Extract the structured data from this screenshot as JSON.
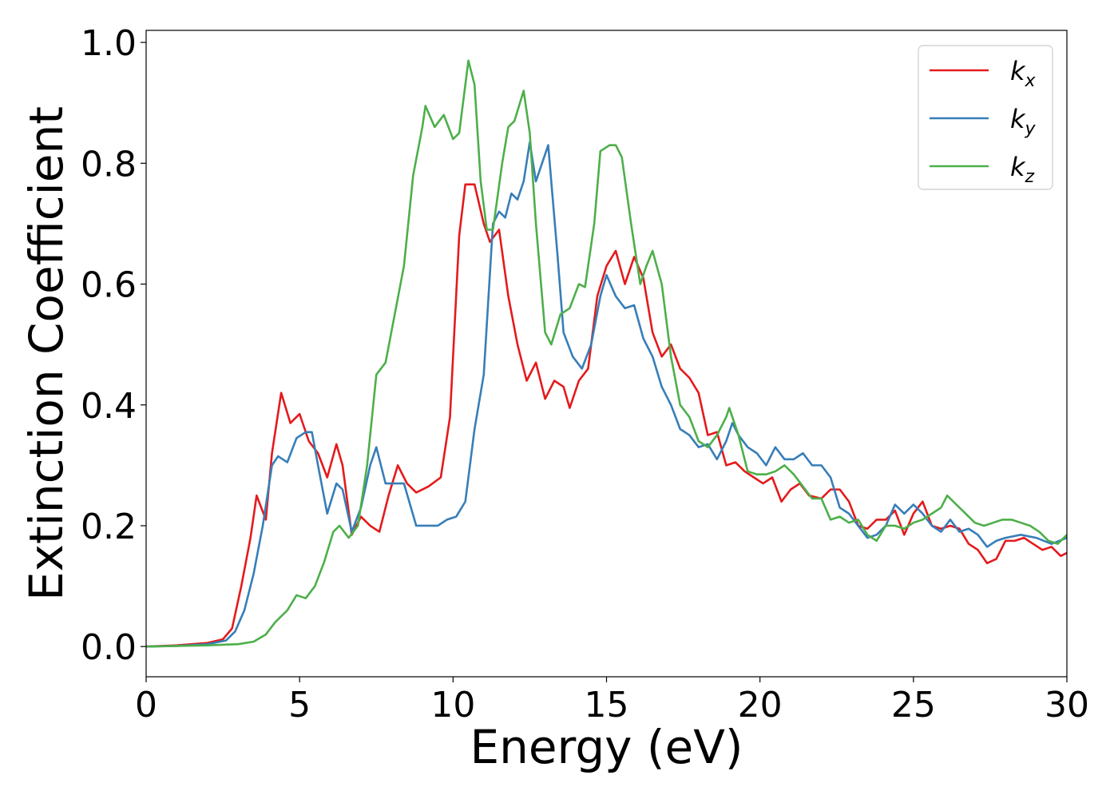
{
  "chart_data": {
    "type": "line",
    "xlabel": "Energy (eV)",
    "ylabel": "Extinction Coefficient",
    "xlim": [
      0,
      30
    ],
    "ylim": [
      -0.05,
      1.02
    ],
    "xticks": [
      0,
      5,
      10,
      15,
      20,
      25,
      30
    ],
    "xtick_labels": [
      "0",
      "5",
      "10",
      "15",
      "20",
      "25",
      "30"
    ],
    "yticks": [
      0.0,
      0.2,
      0.4,
      0.6,
      0.8,
      1.0
    ],
    "ytick_labels": [
      "0.0",
      "0.2",
      "0.4",
      "0.6",
      "0.8",
      "1.0"
    ],
    "grid": false,
    "legend_position": "top-right",
    "series": [
      {
        "name": "k_x",
        "label_base": "k",
        "label_sub": "x",
        "color": "#e41a1c",
        "points": [
          [
            0,
            0
          ],
          [
            1,
            0.002
          ],
          [
            2,
            0.006
          ],
          [
            2.5,
            0.012
          ],
          [
            2.8,
            0.03
          ],
          [
            3.1,
            0.1
          ],
          [
            3.4,
            0.18
          ],
          [
            3.6,
            0.25
          ],
          [
            3.9,
            0.21
          ],
          [
            4.1,
            0.32
          ],
          [
            4.4,
            0.42
          ],
          [
            4.7,
            0.37
          ],
          [
            5.0,
            0.385
          ],
          [
            5.3,
            0.34
          ],
          [
            5.6,
            0.32
          ],
          [
            5.9,
            0.28
          ],
          [
            6.2,
            0.335
          ],
          [
            6.4,
            0.3
          ],
          [
            6.7,
            0.185
          ],
          [
            7.0,
            0.215
          ],
          [
            7.3,
            0.2
          ],
          [
            7.6,
            0.19
          ],
          [
            7.9,
            0.25
          ],
          [
            8.2,
            0.3
          ],
          [
            8.5,
            0.27
          ],
          [
            8.8,
            0.255
          ],
          [
            9.2,
            0.265
          ],
          [
            9.6,
            0.28
          ],
          [
            9.9,
            0.38
          ],
          [
            10.2,
            0.68
          ],
          [
            10.4,
            0.765
          ],
          [
            10.7,
            0.765
          ],
          [
            11.0,
            0.7
          ],
          [
            11.2,
            0.67
          ],
          [
            11.5,
            0.69
          ],
          [
            11.8,
            0.58
          ],
          [
            12.1,
            0.5
          ],
          [
            12.4,
            0.44
          ],
          [
            12.7,
            0.47
          ],
          [
            13.0,
            0.41
          ],
          [
            13.3,
            0.44
          ],
          [
            13.6,
            0.43
          ],
          [
            13.8,
            0.395
          ],
          [
            14.1,
            0.44
          ],
          [
            14.4,
            0.46
          ],
          [
            14.7,
            0.58
          ],
          [
            15.0,
            0.63
          ],
          [
            15.3,
            0.655
          ],
          [
            15.6,
            0.6
          ],
          [
            15.9,
            0.645
          ],
          [
            16.2,
            0.61
          ],
          [
            16.5,
            0.52
          ],
          [
            16.8,
            0.48
          ],
          [
            17.1,
            0.5
          ],
          [
            17.4,
            0.46
          ],
          [
            17.7,
            0.445
          ],
          [
            18.0,
            0.42
          ],
          [
            18.3,
            0.35
          ],
          [
            18.6,
            0.355
          ],
          [
            18.9,
            0.3
          ],
          [
            19.2,
            0.305
          ],
          [
            19.5,
            0.29
          ],
          [
            19.8,
            0.28
          ],
          [
            20.1,
            0.27
          ],
          [
            20.4,
            0.28
          ],
          [
            20.7,
            0.24
          ],
          [
            21.0,
            0.26
          ],
          [
            21.3,
            0.27
          ],
          [
            21.6,
            0.25
          ],
          [
            22.0,
            0.245
          ],
          [
            22.3,
            0.26
          ],
          [
            22.6,
            0.26
          ],
          [
            22.9,
            0.24
          ],
          [
            23.2,
            0.2
          ],
          [
            23.5,
            0.195
          ],
          [
            23.8,
            0.21
          ],
          [
            24.1,
            0.21
          ],
          [
            24.4,
            0.225
          ],
          [
            24.7,
            0.185
          ],
          [
            25.0,
            0.22
          ],
          [
            25.3,
            0.24
          ],
          [
            25.6,
            0.2
          ],
          [
            25.9,
            0.195
          ],
          [
            26.2,
            0.2
          ],
          [
            26.5,
            0.195
          ],
          [
            26.8,
            0.17
          ],
          [
            27.1,
            0.16
          ],
          [
            27.4,
            0.138
          ],
          [
            27.7,
            0.145
          ],
          [
            28.0,
            0.175
          ],
          [
            28.3,
            0.175
          ],
          [
            28.6,
            0.18
          ],
          [
            28.9,
            0.17
          ],
          [
            29.2,
            0.16
          ],
          [
            29.5,
            0.165
          ],
          [
            29.8,
            0.15
          ],
          [
            30,
            0.155
          ]
        ]
      },
      {
        "name": "k_y",
        "label_base": "k",
        "label_sub": "y",
        "color": "#377eb8",
        "points": [
          [
            0,
            0
          ],
          [
            1,
            0.001
          ],
          [
            2,
            0.004
          ],
          [
            2.6,
            0.01
          ],
          [
            2.9,
            0.025
          ],
          [
            3.2,
            0.06
          ],
          [
            3.5,
            0.12
          ],
          [
            3.8,
            0.2
          ],
          [
            4.1,
            0.3
          ],
          [
            4.3,
            0.315
          ],
          [
            4.6,
            0.305
          ],
          [
            4.9,
            0.345
          ],
          [
            5.2,
            0.355
          ],
          [
            5.4,
            0.355
          ],
          [
            5.6,
            0.3
          ],
          [
            5.9,
            0.22
          ],
          [
            6.2,
            0.27
          ],
          [
            6.4,
            0.26
          ],
          [
            6.7,
            0.19
          ],
          [
            7.0,
            0.23
          ],
          [
            7.3,
            0.3
          ],
          [
            7.5,
            0.33
          ],
          [
            7.8,
            0.27
          ],
          [
            8.1,
            0.27
          ],
          [
            8.4,
            0.27
          ],
          [
            8.8,
            0.2
          ],
          [
            9.2,
            0.2
          ],
          [
            9.5,
            0.2
          ],
          [
            9.8,
            0.21
          ],
          [
            10.1,
            0.215
          ],
          [
            10.4,
            0.24
          ],
          [
            10.7,
            0.36
          ],
          [
            11.0,
            0.45
          ],
          [
            11.3,
            0.7
          ],
          [
            11.5,
            0.72
          ],
          [
            11.7,
            0.71
          ],
          [
            11.9,
            0.75
          ],
          [
            12.1,
            0.74
          ],
          [
            12.3,
            0.77
          ],
          [
            12.5,
            0.835
          ],
          [
            12.7,
            0.77
          ],
          [
            12.9,
            0.8
          ],
          [
            13.1,
            0.83
          ],
          [
            13.4,
            0.65
          ],
          [
            13.6,
            0.52
          ],
          [
            13.9,
            0.48
          ],
          [
            14.2,
            0.46
          ],
          [
            14.5,
            0.5
          ],
          [
            14.8,
            0.58
          ],
          [
            15.0,
            0.615
          ],
          [
            15.3,
            0.58
          ],
          [
            15.6,
            0.56
          ],
          [
            15.9,
            0.565
          ],
          [
            16.2,
            0.51
          ],
          [
            16.5,
            0.48
          ],
          [
            16.8,
            0.43
          ],
          [
            17.1,
            0.4
          ],
          [
            17.4,
            0.36
          ],
          [
            17.7,
            0.35
          ],
          [
            18.0,
            0.33
          ],
          [
            18.3,
            0.335
          ],
          [
            18.6,
            0.31
          ],
          [
            18.9,
            0.34
          ],
          [
            19.1,
            0.37
          ],
          [
            19.3,
            0.35
          ],
          [
            19.6,
            0.33
          ],
          [
            19.9,
            0.32
          ],
          [
            20.2,
            0.3
          ],
          [
            20.5,
            0.33
          ],
          [
            20.8,
            0.31
          ],
          [
            21.1,
            0.31
          ],
          [
            21.4,
            0.32
          ],
          [
            21.7,
            0.3
          ],
          [
            22.0,
            0.3
          ],
          [
            22.3,
            0.28
          ],
          [
            22.6,
            0.23
          ],
          [
            22.9,
            0.22
          ],
          [
            23.2,
            0.2
          ],
          [
            23.5,
            0.18
          ],
          [
            23.8,
            0.185
          ],
          [
            24.1,
            0.2
          ],
          [
            24.4,
            0.235
          ],
          [
            24.7,
            0.22
          ],
          [
            25.0,
            0.235
          ],
          [
            25.3,
            0.22
          ],
          [
            25.6,
            0.2
          ],
          [
            25.9,
            0.19
          ],
          [
            26.2,
            0.21
          ],
          [
            26.5,
            0.19
          ],
          [
            26.8,
            0.195
          ],
          [
            27.1,
            0.185
          ],
          [
            27.4,
            0.165
          ],
          [
            27.7,
            0.175
          ],
          [
            28.0,
            0.18
          ],
          [
            28.5,
            0.185
          ],
          [
            29.0,
            0.18
          ],
          [
            29.5,
            0.17
          ],
          [
            30,
            0.18
          ]
        ]
      },
      {
        "name": "k_z",
        "label_base": "k",
        "label_sub": "z",
        "color": "#4daf4a",
        "points": [
          [
            0,
            0
          ],
          [
            1,
            0.001
          ],
          [
            2,
            0.002
          ],
          [
            3,
            0.004
          ],
          [
            3.5,
            0.008
          ],
          [
            3.9,
            0.02
          ],
          [
            4.2,
            0.04
          ],
          [
            4.6,
            0.06
          ],
          [
            4.9,
            0.085
          ],
          [
            5.2,
            0.08
          ],
          [
            5.5,
            0.1
          ],
          [
            5.8,
            0.14
          ],
          [
            6.1,
            0.19
          ],
          [
            6.3,
            0.2
          ],
          [
            6.6,
            0.18
          ],
          [
            6.9,
            0.2
          ],
          [
            7.2,
            0.3
          ],
          [
            7.5,
            0.45
          ],
          [
            7.8,
            0.47
          ],
          [
            8.1,
            0.55
          ],
          [
            8.4,
            0.63
          ],
          [
            8.7,
            0.78
          ],
          [
            9.0,
            0.86
          ],
          [
            9.1,
            0.895
          ],
          [
            9.4,
            0.86
          ],
          [
            9.7,
            0.88
          ],
          [
            10.0,
            0.84
          ],
          [
            10.2,
            0.85
          ],
          [
            10.5,
            0.97
          ],
          [
            10.7,
            0.93
          ],
          [
            10.9,
            0.77
          ],
          [
            11.1,
            0.69
          ],
          [
            11.3,
            0.69
          ],
          [
            11.6,
            0.8
          ],
          [
            11.8,
            0.86
          ],
          [
            12.0,
            0.87
          ],
          [
            12.3,
            0.92
          ],
          [
            12.5,
            0.85
          ],
          [
            12.7,
            0.7
          ],
          [
            13.0,
            0.52
          ],
          [
            13.2,
            0.5
          ],
          [
            13.5,
            0.55
          ],
          [
            13.8,
            0.56
          ],
          [
            14.1,
            0.6
          ],
          [
            14.3,
            0.595
          ],
          [
            14.6,
            0.7
          ],
          [
            14.8,
            0.82
          ],
          [
            15.1,
            0.83
          ],
          [
            15.3,
            0.83
          ],
          [
            15.5,
            0.81
          ],
          [
            15.8,
            0.7
          ],
          [
            16.1,
            0.6
          ],
          [
            16.3,
            0.63
          ],
          [
            16.5,
            0.655
          ],
          [
            16.8,
            0.6
          ],
          [
            17.1,
            0.48
          ],
          [
            17.4,
            0.4
          ],
          [
            17.7,
            0.38
          ],
          [
            18.0,
            0.34
          ],
          [
            18.3,
            0.33
          ],
          [
            18.6,
            0.35
          ],
          [
            18.9,
            0.38
          ],
          [
            19.0,
            0.395
          ],
          [
            19.3,
            0.35
          ],
          [
            19.6,
            0.29
          ],
          [
            19.9,
            0.285
          ],
          [
            20.2,
            0.285
          ],
          [
            20.5,
            0.29
          ],
          [
            20.8,
            0.3
          ],
          [
            21.1,
            0.285
          ],
          [
            21.4,
            0.265
          ],
          [
            21.7,
            0.245
          ],
          [
            22.0,
            0.245
          ],
          [
            22.3,
            0.21
          ],
          [
            22.6,
            0.215
          ],
          [
            22.9,
            0.205
          ],
          [
            23.2,
            0.21
          ],
          [
            23.5,
            0.185
          ],
          [
            23.8,
            0.175
          ],
          [
            24.1,
            0.2
          ],
          [
            24.4,
            0.2
          ],
          [
            24.7,
            0.195
          ],
          [
            25.0,
            0.205
          ],
          [
            25.3,
            0.21
          ],
          [
            25.6,
            0.22
          ],
          [
            25.9,
            0.23
          ],
          [
            26.1,
            0.25
          ],
          [
            26.4,
            0.235
          ],
          [
            26.7,
            0.22
          ],
          [
            27.0,
            0.205
          ],
          [
            27.3,
            0.2
          ],
          [
            27.6,
            0.205
          ],
          [
            27.9,
            0.21
          ],
          [
            28.2,
            0.21
          ],
          [
            28.5,
            0.205
          ],
          [
            28.8,
            0.2
          ],
          [
            29.1,
            0.19
          ],
          [
            29.4,
            0.175
          ],
          [
            29.7,
            0.17
          ],
          [
            30,
            0.185
          ]
        ]
      }
    ]
  }
}
